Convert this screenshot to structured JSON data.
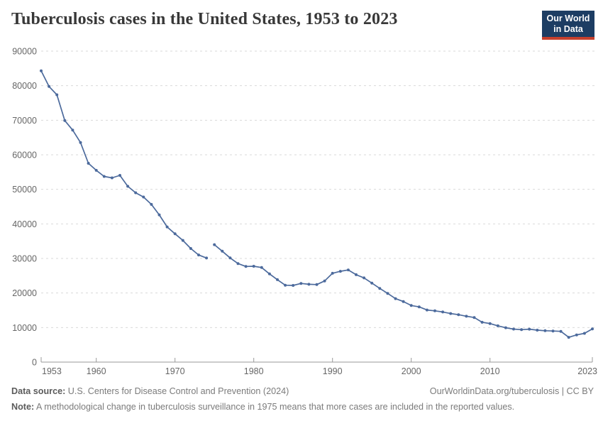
{
  "header": {
    "title": "Tuberculosis cases in the United States, 1953 to 2023",
    "logo": {
      "line1": "Our World",
      "line2": "in Data"
    }
  },
  "colors": {
    "line": "#4c6a9c",
    "logo_bg": "#1d3d63",
    "logo_accent": "#c7402d",
    "grid": "#dadada",
    "axis": "#9a9a9a",
    "tick_text": "#666666"
  },
  "chart_data": {
    "type": "line",
    "title": "Tuberculosis cases in the United States, 1953 to 2023",
    "xlabel": "",
    "ylabel": "",
    "xlim": [
      1953,
      2023
    ],
    "ylim": [
      0,
      90000
    ],
    "x_ticks": [
      1953,
      1960,
      1970,
      1980,
      1990,
      2000,
      2010,
      2023
    ],
    "y_ticks": [
      0,
      10000,
      20000,
      30000,
      40000,
      50000,
      60000,
      70000,
      80000,
      90000
    ],
    "grid": "horizontal-dashed",
    "legend": "none",
    "line_color": "#4c6a9c",
    "break_note": "Line is broken between 1974 and 1975 due to a methodological change in surveillance",
    "segments": [
      {
        "name": "1953-1974 (pre-1975 methodology)",
        "points": [
          [
            1953,
            84304
          ],
          [
            1954,
            79775
          ],
          [
            1955,
            77368
          ],
          [
            1956,
            69895
          ],
          [
            1957,
            67149
          ],
          [
            1958,
            63534
          ],
          [
            1959,
            57535
          ],
          [
            1960,
            55494
          ],
          [
            1961,
            53726
          ],
          [
            1962,
            53315
          ],
          [
            1963,
            54042
          ],
          [
            1964,
            50874
          ],
          [
            1965,
            49016
          ],
          [
            1966,
            47767
          ],
          [
            1967,
            45647
          ],
          [
            1968,
            42623
          ],
          [
            1969,
            39120
          ],
          [
            1970,
            37137
          ],
          [
            1971,
            35217
          ],
          [
            1972,
            32882
          ],
          [
            1973,
            30998
          ],
          [
            1974,
            30122
          ]
        ]
      },
      {
        "name": "1975-2023 (post-1975 methodology)",
        "points": [
          [
            1975,
            33989
          ],
          [
            1976,
            32105
          ],
          [
            1977,
            30145
          ],
          [
            1978,
            28521
          ],
          [
            1979,
            27669
          ],
          [
            1980,
            27749
          ],
          [
            1981,
            27373
          ],
          [
            1982,
            25520
          ],
          [
            1983,
            23846
          ],
          [
            1984,
            22255
          ],
          [
            1985,
            22201
          ],
          [
            1986,
            22768
          ],
          [
            1987,
            22517
          ],
          [
            1988,
            22436
          ],
          [
            1989,
            23495
          ],
          [
            1990,
            25701
          ],
          [
            1991,
            26283
          ],
          [
            1992,
            26673
          ],
          [
            1993,
            25287
          ],
          [
            1994,
            24361
          ],
          [
            1995,
            22860
          ],
          [
            1996,
            21337
          ],
          [
            1997,
            19885
          ],
          [
            1998,
            18361
          ],
          [
            1999,
            17531
          ],
          [
            2000,
            16377
          ],
          [
            2001,
            15989
          ],
          [
            2002,
            15075
          ],
          [
            2003,
            14835
          ],
          [
            2004,
            14499
          ],
          [
            2005,
            14065
          ],
          [
            2006,
            13728
          ],
          [
            2007,
            13282
          ],
          [
            2008,
            12895
          ],
          [
            2009,
            11523
          ],
          [
            2010,
            11161
          ],
          [
            2011,
            10510
          ],
          [
            2012,
            9940
          ],
          [
            2013,
            9561
          ],
          [
            2014,
            9398
          ],
          [
            2015,
            9537
          ],
          [
            2016,
            9242
          ],
          [
            2017,
            9072
          ],
          [
            2018,
            8996
          ],
          [
            2019,
            8904
          ],
          [
            2020,
            7171
          ],
          [
            2021,
            7866
          ],
          [
            2022,
            8325
          ],
          [
            2023,
            9615
          ]
        ]
      }
    ]
  },
  "footer": {
    "source_label": "Data source:",
    "source_text": "U.S. Centers for Disease Control and Prevention (2024)",
    "attribution": "OurWorldinData.org/tuberculosis | CC BY",
    "note_label": "Note:",
    "note_text": "A methodological change in tuberculosis surveillance in 1975 means that more cases are included in the reported values."
  }
}
